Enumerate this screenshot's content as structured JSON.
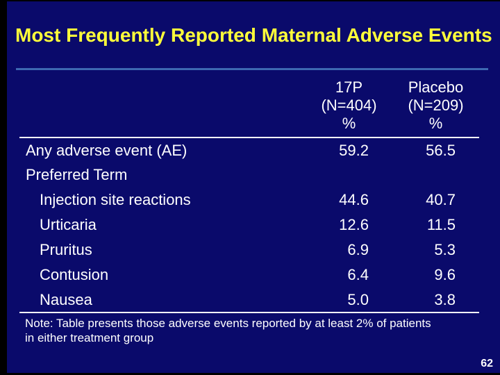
{
  "slide": {
    "title": "Most Frequently Reported Maternal Adverse Events",
    "note": "Note: Table presents those adverse events reported by at least 2% of patients in either treatment group",
    "page_number": "62"
  },
  "colors": {
    "background": "#0a0a6b",
    "frame": "#000000",
    "title": "#ffff3a",
    "rule_blue": "#3d68b2",
    "text": "#ffffff"
  },
  "table": {
    "columns": [
      {
        "label": ""
      },
      {
        "label": "17P\n(N=404)\n%"
      },
      {
        "label": "Placebo\n(N=209)\n%"
      }
    ],
    "rows": [
      {
        "label": "Any adverse event (AE)",
        "indent": false,
        "v17p": "59.2",
        "placebo": "56.5"
      },
      {
        "label": "Preferred Term",
        "indent": false,
        "v17p": "",
        "placebo": ""
      },
      {
        "label": "Injection site reactions",
        "indent": true,
        "v17p": "44.6",
        "placebo": "40.7"
      },
      {
        "label": "Urticaria",
        "indent": true,
        "v17p": "12.6",
        "placebo": "11.5"
      },
      {
        "label": "Pruritus",
        "indent": true,
        "v17p": "6.9",
        "placebo": "5.3"
      },
      {
        "label": "Contusion",
        "indent": true,
        "v17p": "6.4",
        "placebo": "9.6"
      },
      {
        "label": "Nausea",
        "indent": true,
        "v17p": "5.0",
        "placebo": "3.8"
      }
    ]
  }
}
